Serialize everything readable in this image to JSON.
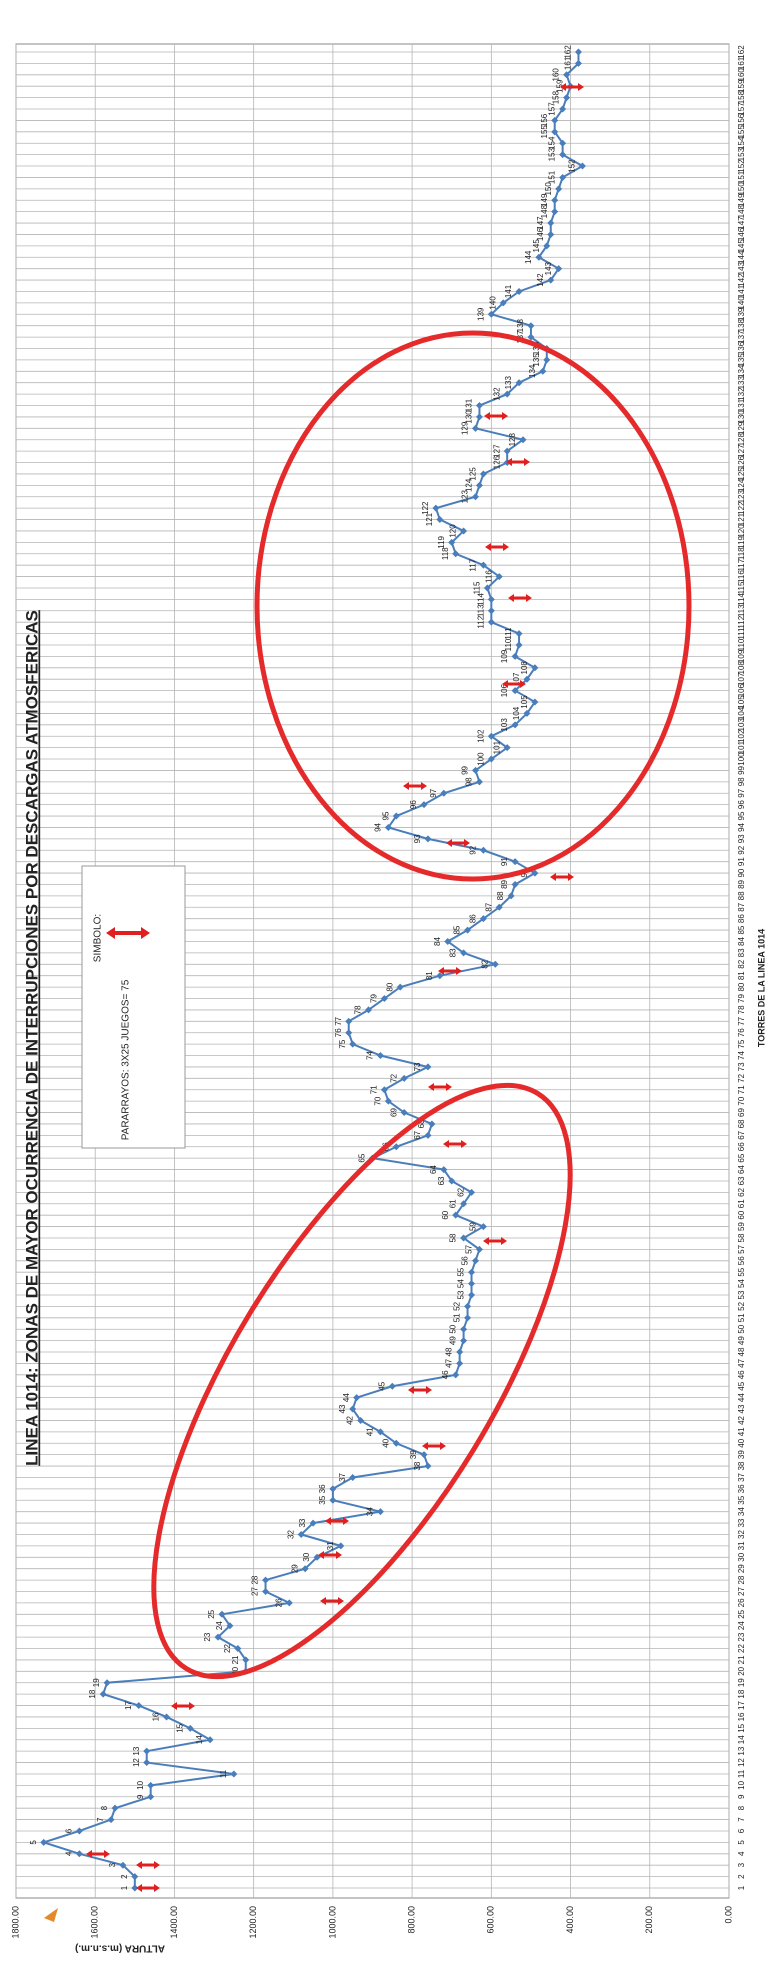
{
  "chart_data": {
    "type": "line",
    "title": "LINEA 1014: ZONAS DE MAYOR OCURRENCIA DE INTERRUPCIONES POR DESCARGAS ATMOSFERICAS",
    "x_label": "TORRES  DE LA LINEA 1014",
    "y_label": "ALTURA (m.s.n.m.)",
    "legend_title": "SIMBOLO:",
    "legend_text": "PARARRAYOS: 3X25 JUEGOS= 75",
    "categories": [
      "1",
      "2",
      "3",
      "4",
      "5",
      "6",
      "7",
      "8",
      "9",
      "10",
      "11",
      "12",
      "13",
      "14",
      "15",
      "16",
      "17",
      "18",
      "19",
      "20",
      "21",
      "22",
      "23",
      "24",
      "25",
      "26",
      "27",
      "28",
      "29",
      "30",
      "31",
      "32",
      "33",
      "34",
      "35",
      "36",
      "37",
      "38",
      "39",
      "40",
      "41",
      "42",
      "43",
      "44",
      "45",
      "46",
      "47",
      "48",
      "49",
      "50",
      "51",
      "52",
      "53",
      "54",
      "55",
      "56",
      "57",
      "58",
      "59",
      "60",
      "61",
      "62",
      "63",
      "64",
      "65",
      "66",
      "67",
      "68",
      "69",
      "70",
      "71",
      "72",
      "73",
      "74",
      "75",
      "76",
      "77",
      "78",
      "79",
      "80",
      "81",
      "82",
      "83",
      "84",
      "85",
      "86",
      "87",
      "88",
      "89",
      "90",
      "91",
      "92",
      "93",
      "94",
      "95",
      "96",
      "97",
      "98",
      "99",
      "100",
      "101",
      "102",
      "103",
      "104",
      "105",
      "106",
      "107",
      "108",
      "109",
      "110",
      "111",
      "112",
      "113",
      "114",
      "115",
      "116",
      "117",
      "118",
      "119",
      "120",
      "121",
      "122",
      "123",
      "124",
      "125",
      "126",
      "127",
      "128",
      "129",
      "130",
      "131",
      "132",
      "133",
      "134",
      "135",
      "136",
      "137",
      "138",
      "139",
      "140",
      "141",
      "142",
      "143",
      "144",
      "145",
      "146",
      "147",
      "148",
      "149",
      "150",
      "151",
      "152",
      "153",
      "154",
      "155",
      "156",
      "157",
      "158",
      "159",
      "160",
      "161",
      "162"
    ],
    "series": [
      {
        "name": "ALTURA",
        "color": "#4a7ebb",
        "values": [
          1500,
          1500,
          1530,
          1640,
          1730,
          1640,
          1560,
          1550,
          1460,
          1460,
          1250,
          1470,
          1470,
          1310,
          1360,
          1420,
          1490,
          1580,
          1570,
          1220,
          1220,
          1240,
          1290,
          1260,
          1280,
          1110,
          1170,
          1170,
          1070,
          1040,
          980,
          1080,
          1050,
          880,
          1000,
          1000,
          950,
          760,
          770,
          840,
          880,
          930,
          950,
          940,
          850,
          690,
          680,
          680,
          670,
          670,
          660,
          660,
          650,
          650,
          650,
          640,
          630,
          670,
          620,
          690,
          670,
          650,
          700,
          720,
          900,
          840,
          760,
          750,
          820,
          860,
          870,
          820,
          760,
          880,
          950,
          960,
          960,
          910,
          870,
          830,
          730,
          590,
          670,
          710,
          660,
          620,
          580,
          550,
          540,
          490,
          540,
          620,
          760,
          860,
          840,
          770,
          720,
          630,
          640,
          600,
          560,
          600,
          540,
          510,
          490,
          540,
          510,
          490,
          540,
          530,
          530,
          600,
          600,
          600,
          610,
          580,
          620,
          690,
          700,
          670,
          730,
          740,
          640,
          630,
          620,
          560,
          560,
          520,
          640,
          630,
          630,
          560,
          530,
          470,
          460,
          460,
          500,
          500,
          600,
          570,
          530,
          450,
          430,
          480,
          460,
          450,
          450,
          440,
          440,
          430,
          420,
          370,
          420,
          420,
          440,
          440,
          420,
          410,
          400,
          410,
          380,
          380
        ]
      }
    ],
    "ylim": [
      0,
      1800
    ],
    "yticks": [
      {
        "value": 0,
        "label": "0.00"
      },
      {
        "value": 200,
        "label": "200.00"
      },
      {
        "value": 400,
        "label": "400.00"
      },
      {
        "value": 600,
        "label": "600.00"
      },
      {
        "value": 800,
        "label": "800.00"
      },
      {
        "value": 1000,
        "label": "1000.00"
      },
      {
        "value": 1200,
        "label": "1200.00"
      },
      {
        "value": 1400,
        "label": "1400.00"
      },
      {
        "value": 1600,
        "label": "1600.00"
      },
      {
        "value": 1800,
        "label": "1800.00"
      }
    ],
    "grid": true
  }
}
